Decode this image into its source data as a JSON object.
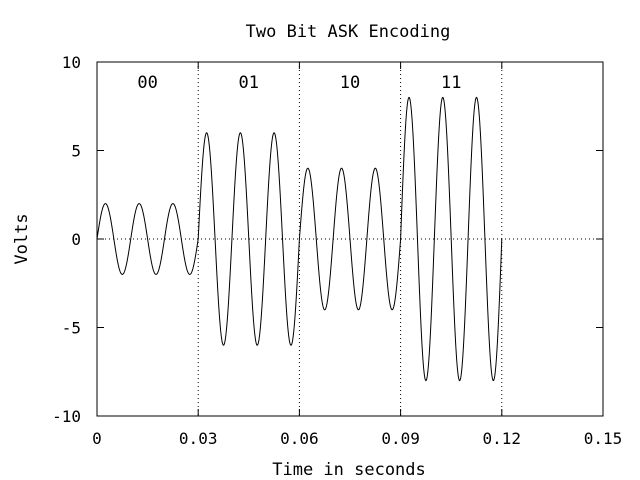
{
  "chart_data": {
    "type": "line",
    "title": "Two Bit ASK Encoding",
    "xlabel": "Time in seconds",
    "ylabel": "Volts",
    "xlim": [
      0,
      0.15
    ],
    "ylim": [
      -10,
      10
    ],
    "x_ticks": [
      {
        "value": 0,
        "label": "0"
      },
      {
        "value": 0.03,
        "label": "0.03"
      },
      {
        "value": 0.06,
        "label": "0.06"
      },
      {
        "value": 0.09,
        "label": "0.09"
      },
      {
        "value": 0.12,
        "label": "0.12"
      },
      {
        "value": 0.15,
        "label": "0.15"
      }
    ],
    "y_ticks": [
      {
        "value": 10,
        "label": "10"
      },
      {
        "value": 5,
        "label": "5"
      },
      {
        "value": 0,
        "label": "0"
      },
      {
        "value": -5,
        "label": "-5"
      },
      {
        "value": -10,
        "label": "-10"
      }
    ],
    "carrier_frequency_hz": 100,
    "segments": [
      {
        "label": "00",
        "t_start": 0,
        "t_end": 0.03,
        "amplitude": 2
      },
      {
        "label": "01",
        "t_start": 0.03,
        "t_end": 0.06,
        "amplitude": 6
      },
      {
        "label": "10",
        "t_start": 0.06,
        "t_end": 0.09,
        "amplitude": 4
      },
      {
        "label": "11",
        "t_start": 0.09,
        "t_end": 0.12,
        "amplitude": 8
      }
    ],
    "boundaries": [
      0.03,
      0.06,
      0.09,
      0.12
    ],
    "zero_line": "dotted",
    "grid": false
  }
}
